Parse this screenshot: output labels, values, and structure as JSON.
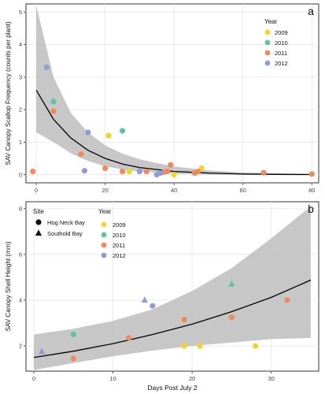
{
  "colors": {
    "2009": "#f2d62a",
    "2010": "#5ec3a3",
    "2011": "#f08a5d",
    "2012": "#8d9fd1",
    "band": "#bdbdbd",
    "line": "#000000"
  },
  "chart_data": [
    {
      "type": "scatter",
      "panel_label": "a",
      "title": "",
      "xlabel": "",
      "ylabel": "SAV Canopy Scallop Frequency (counts per plant)",
      "xlim": [
        -3,
        82
      ],
      "ylim": [
        -0.25,
        5.25
      ],
      "xticks": [
        0,
        20,
        40,
        60,
        80
      ],
      "yticks": [
        0,
        1,
        2,
        3,
        4,
        5
      ],
      "grid": true,
      "legend_position": "top-right",
      "legend_title": "Year",
      "series": [
        {
          "name": "2009",
          "color_key": "2009",
          "x": [
            21,
            27,
            40,
            48
          ],
          "y": [
            1.2,
            0.1,
            0.0,
            0.2
          ]
        },
        {
          "name": "2010",
          "color_key": "2010",
          "x": [
            5,
            25
          ],
          "y": [
            2.25,
            1.35
          ]
        },
        {
          "name": "2011",
          "color_key": "2011",
          "x": [
            -1,
            5,
            13,
            20,
            25,
            32,
            37,
            38,
            39,
            46,
            47,
            66,
            80
          ],
          "y": [
            0.1,
            1.95,
            0.63,
            0.2,
            0.1,
            0.1,
            0.08,
            0.1,
            0.3,
            0.05,
            0.1,
            0.06,
            0.02
          ]
        },
        {
          "name": "2012",
          "color_key": "2012",
          "x": [
            3,
            14,
            15,
            30,
            35,
            36
          ],
          "y": [
            3.3,
            0.12,
            1.3,
            0.1,
            0.0,
            0.05
          ]
        }
      ],
      "fit": {
        "x": [
          0,
          5,
          10,
          15,
          20,
          25,
          30,
          40,
          50,
          60,
          70,
          80
        ],
        "y": [
          2.6,
          1.7,
          1.13,
          0.75,
          0.5,
          0.33,
          0.22,
          0.1,
          0.05,
          0.02,
          0.01,
          0.005
        ],
        "lower": [
          1.3,
          1.0,
          0.66,
          0.42,
          0.26,
          0.16,
          0.1,
          0.03,
          0.01,
          0.0,
          0.0,
          0.0
        ],
        "upper": [
          5.2,
          3.0,
          1.9,
          1.3,
          0.9,
          0.65,
          0.47,
          0.25,
          0.13,
          0.07,
          0.04,
          0.02
        ]
      }
    },
    {
      "type": "scatter",
      "panel_label": "b",
      "title": "",
      "xlabel": "Days Post July 2",
      "ylabel": "SAV Canopy Shell Height (mm)",
      "xlim": [
        -1,
        36
      ],
      "ylim": [
        0.9,
        8.3
      ],
      "xticks": [
        0,
        10,
        20,
        30
      ],
      "yticks": [
        2,
        4,
        6,
        8
      ],
      "grid": true,
      "legend_position": "top-left",
      "legend_site_title": "Site",
      "legend_sites": [
        {
          "name": "Hog Neck Bay",
          "shape": "circle"
        },
        {
          "name": "Southold Bay",
          "shape": "triangle"
        }
      ],
      "legend_year_title": "Year",
      "series": [
        {
          "name": "2009",
          "color_key": "2009",
          "points": [
            [
              19,
              2.0,
              "circle"
            ],
            [
              21,
              2.0,
              "circle"
            ],
            [
              28,
              2.0,
              "circle"
            ]
          ]
        },
        {
          "name": "2010",
          "color_key": "2010",
          "points": [
            [
              5,
              2.5,
              "circle"
            ],
            [
              25,
              4.7,
              "triangle"
            ]
          ]
        },
        {
          "name": "2011",
          "color_key": "2011",
          "points": [
            [
              5,
              1.45,
              "circle"
            ],
            [
              12,
              2.35,
              "circle"
            ],
            [
              19,
              3.15,
              "circle"
            ],
            [
              25,
              3.25,
              "circle"
            ],
            [
              32,
              4.0,
              "circle"
            ]
          ]
        },
        {
          "name": "2012",
          "color_key": "2012",
          "points": [
            [
              1,
              1.75,
              "triangle"
            ],
            [
              14,
              4.0,
              "triangle"
            ],
            [
              15,
              3.75,
              "circle"
            ]
          ]
        }
      ],
      "fit": {
        "x": [
          0,
          5,
          10,
          15,
          20,
          25,
          30,
          35
        ],
        "y": [
          1.5,
          1.77,
          2.1,
          2.5,
          2.95,
          3.5,
          4.12,
          4.88
        ],
        "lower": [
          0.95,
          1.25,
          1.55,
          1.8,
          2.0,
          2.15,
          2.3,
          2.35
        ],
        "upper": [
          2.5,
          2.75,
          3.1,
          3.6,
          4.4,
          5.4,
          6.7,
          8.1
        ]
      }
    }
  ]
}
